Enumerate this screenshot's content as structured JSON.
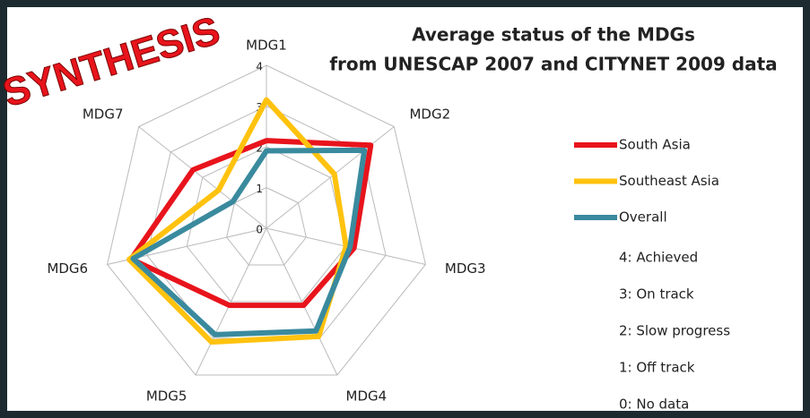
{
  "chart_data": {
    "type": "radar",
    "title": [
      "Average status of the MDGs",
      "from UNESCAP 2007 and CITYNET 2009 data"
    ],
    "annotation": "SYNTHESIS",
    "categories": [
      "MDG1",
      "MDG2",
      "MDG3",
      "MDG4",
      "MDG5",
      "MDG6",
      "MDG7"
    ],
    "rlim": [
      0,
      4
    ],
    "rticks": [
      0,
      1,
      2,
      3,
      4
    ],
    "grid": true,
    "legend": "right",
    "series": [
      {
        "name": "South Asia",
        "color": "#e8141c",
        "values": [
          2.15,
          3.27,
          2.2,
          2.1,
          2.1,
          3.4,
          2.3
        ]
      },
      {
        "name": "Southeast Asia",
        "color": "#ffc20e",
        "values": [
          3.15,
          2.13,
          2.0,
          2.95,
          3.1,
          3.45,
          1.5
        ]
      },
      {
        "name": "Overall",
        "color": "#3a8a9e",
        "values": [
          1.9,
          3.07,
          2.1,
          2.8,
          2.9,
          3.35,
          1.05
        ]
      }
    ],
    "legend_notes": [
      "4: Achieved",
      "3: On track",
      "2: Slow progress",
      "1: Off track",
      "0: No data"
    ]
  }
}
